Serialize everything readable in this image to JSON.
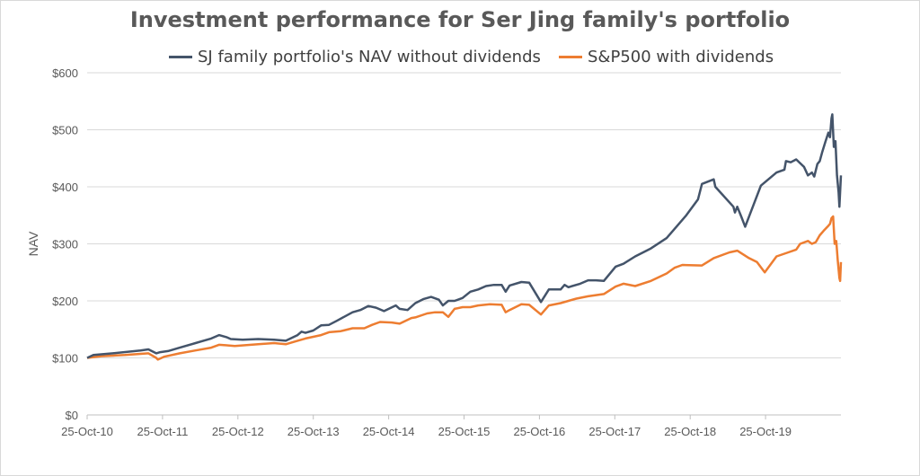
{
  "chart_data": {
    "type": "line",
    "title": "Investment performance for Ser Jing family's portfolio",
    "xlabel": "",
    "ylabel": "NAV",
    "ylim": [
      0,
      600
    ],
    "y_ticks": [
      "$0",
      "$100",
      "$200",
      "$300",
      "$400",
      "$500",
      "$600"
    ],
    "y_tick_values": [
      0,
      100,
      200,
      300,
      400,
      500,
      600
    ],
    "x_ticks": [
      "25-Oct-10",
      "25-Oct-11",
      "25-Oct-12",
      "25-Oct-13",
      "25-Oct-14",
      "25-Oct-15",
      "25-Oct-16",
      "25-Oct-17",
      "25-Oct-18",
      "25-Oct-19"
    ],
    "x_range_years": [
      2010.82,
      2020.42
    ],
    "grid": "horizontal",
    "legend_position": "top",
    "series": [
      {
        "name": "SJ family portfolio's NAV without dividends",
        "color": "#44546a",
        "points": [
          [
            2010.82,
            100
          ],
          [
            2010.9,
            105
          ],
          [
            2011.15,
            108
          ],
          [
            2011.5,
            113
          ],
          [
            2011.6,
            115
          ],
          [
            2011.7,
            108
          ],
          [
            2011.75,
            110
          ],
          [
            2011.85,
            112
          ],
          [
            2012.0,
            118
          ],
          [
            2012.2,
            126
          ],
          [
            2012.4,
            134
          ],
          [
            2012.5,
            140
          ],
          [
            2012.6,
            136
          ],
          [
            2012.65,
            133
          ],
          [
            2012.8,
            132
          ],
          [
            2013.0,
            133
          ],
          [
            2013.2,
            132
          ],
          [
            2013.35,
            130
          ],
          [
            2013.5,
            140
          ],
          [
            2013.55,
            146
          ],
          [
            2013.6,
            144
          ],
          [
            2013.7,
            148
          ],
          [
            2013.8,
            157
          ],
          [
            2013.9,
            158
          ],
          [
            2014.0,
            165
          ],
          [
            2014.2,
            180
          ],
          [
            2014.3,
            184
          ],
          [
            2014.4,
            191
          ],
          [
            2014.5,
            188
          ],
          [
            2014.6,
            182
          ],
          [
            2014.75,
            192
          ],
          [
            2014.8,
            186
          ],
          [
            2014.9,
            184
          ],
          [
            2015.0,
            196
          ],
          [
            2015.1,
            203
          ],
          [
            2015.2,
            207
          ],
          [
            2015.3,
            202
          ],
          [
            2015.35,
            192
          ],
          [
            2015.42,
            200
          ],
          [
            2015.5,
            200
          ],
          [
            2015.6,
            205
          ],
          [
            2015.7,
            216
          ],
          [
            2015.8,
            220
          ],
          [
            2015.9,
            226
          ],
          [
            2016.0,
            228
          ],
          [
            2016.1,
            228
          ],
          [
            2016.15,
            216
          ],
          [
            2016.2,
            227
          ],
          [
            2016.35,
            233
          ],
          [
            2016.45,
            232
          ],
          [
            2016.6,
            198
          ],
          [
            2016.7,
            220
          ],
          [
            2016.85,
            220
          ],
          [
            2016.9,
            228
          ],
          [
            2016.95,
            224
          ],
          [
            2017.1,
            230
          ],
          [
            2017.2,
            236
          ],
          [
            2017.3,
            236
          ],
          [
            2017.4,
            235
          ],
          [
            2017.55,
            260
          ],
          [
            2017.65,
            265
          ],
          [
            2017.8,
            278
          ],
          [
            2018.0,
            292
          ],
          [
            2018.2,
            310
          ],
          [
            2018.45,
            350
          ],
          [
            2018.6,
            378
          ],
          [
            2018.65,
            405
          ],
          [
            2018.8,
            413
          ],
          [
            2018.82,
            400
          ],
          [
            2019.05,
            365
          ],
          [
            2019.07,
            355
          ],
          [
            2019.1,
            365
          ],
          [
            2019.15,
            348
          ],
          [
            2019.2,
            330
          ],
          [
            2019.4,
            402
          ],
          [
            2019.6,
            425
          ],
          [
            2019.7,
            430
          ],
          [
            2019.72,
            445
          ],
          [
            2019.78,
            443
          ],
          [
            2019.85,
            448
          ],
          [
            2019.95,
            435
          ],
          [
            2020.0,
            420
          ],
          [
            2020.05,
            425
          ],
          [
            2020.08,
            418
          ],
          [
            2020.12,
            440
          ],
          [
            2020.15,
            445
          ],
          [
            2020.18,
            460
          ],
          [
            2020.22,
            478
          ],
          [
            2020.26,
            495
          ],
          [
            2020.28,
            487
          ],
          [
            2020.3,
            520
          ],
          [
            2020.31,
            527
          ],
          [
            2020.33,
            470
          ],
          [
            2020.35,
            480
          ],
          [
            2020.37,
            420
          ],
          [
            2020.39,
            390
          ],
          [
            2020.4,
            365
          ],
          [
            2020.42,
            420
          ]
        ]
      },
      {
        "name": "S&P500 with dividends",
        "color": "#ed7d31",
        "points": [
          [
            2010.82,
            100
          ],
          [
            2011.0,
            103
          ],
          [
            2011.3,
            105
          ],
          [
            2011.6,
            108
          ],
          [
            2011.7,
            100
          ],
          [
            2011.72,
            97
          ],
          [
            2011.8,
            102
          ],
          [
            2012.0,
            108
          ],
          [
            2012.2,
            113
          ],
          [
            2012.4,
            118
          ],
          [
            2012.5,
            123
          ],
          [
            2012.6,
            122
          ],
          [
            2012.7,
            121
          ],
          [
            2013.0,
            124
          ],
          [
            2013.2,
            126
          ],
          [
            2013.35,
            124
          ],
          [
            2013.5,
            130
          ],
          [
            2013.6,
            134
          ],
          [
            2013.8,
            140
          ],
          [
            2013.9,
            145
          ],
          [
            2014.05,
            147
          ],
          [
            2014.2,
            152
          ],
          [
            2014.35,
            152
          ],
          [
            2014.45,
            158
          ],
          [
            2014.55,
            163
          ],
          [
            2014.7,
            162
          ],
          [
            2014.8,
            160
          ],
          [
            2014.95,
            170
          ],
          [
            2015.0,
            171
          ],
          [
            2015.15,
            178
          ],
          [
            2015.25,
            180
          ],
          [
            2015.35,
            180
          ],
          [
            2015.42,
            172
          ],
          [
            2015.5,
            186
          ],
          [
            2015.6,
            189
          ],
          [
            2015.7,
            189
          ],
          [
            2015.8,
            192
          ],
          [
            2015.95,
            194
          ],
          [
            2016.1,
            193
          ],
          [
            2016.15,
            180
          ],
          [
            2016.2,
            184
          ],
          [
            2016.35,
            194
          ],
          [
            2016.45,
            193
          ],
          [
            2016.6,
            176
          ],
          [
            2016.7,
            192
          ],
          [
            2016.85,
            196
          ],
          [
            2016.95,
            200
          ],
          [
            2017.05,
            204
          ],
          [
            2017.2,
            208
          ],
          [
            2017.4,
            212
          ],
          [
            2017.55,
            225
          ],
          [
            2017.65,
            230
          ],
          [
            2017.8,
            226
          ],
          [
            2018.0,
            235
          ],
          [
            2018.2,
            248
          ],
          [
            2018.3,
            258
          ],
          [
            2018.4,
            263
          ],
          [
            2018.65,
            262
          ],
          [
            2018.8,
            275
          ],
          [
            2019.0,
            285
          ],
          [
            2019.1,
            288
          ],
          [
            2019.25,
            275
          ],
          [
            2019.35,
            268
          ],
          [
            2019.45,
            250
          ],
          [
            2019.6,
            278
          ],
          [
            2019.75,
            285
          ],
          [
            2019.85,
            290
          ],
          [
            2019.9,
            300
          ],
          [
            2020.0,
            305
          ],
          [
            2020.05,
            300
          ],
          [
            2020.1,
            303
          ],
          [
            2020.15,
            315
          ],
          [
            2020.2,
            323
          ],
          [
            2020.25,
            330
          ],
          [
            2020.28,
            335
          ],
          [
            2020.3,
            345
          ],
          [
            2020.32,
            348
          ],
          [
            2020.34,
            300
          ],
          [
            2020.36,
            305
          ],
          [
            2020.38,
            270
          ],
          [
            2020.4,
            240
          ],
          [
            2020.41,
            235
          ],
          [
            2020.42,
            268
          ]
        ]
      }
    ]
  }
}
